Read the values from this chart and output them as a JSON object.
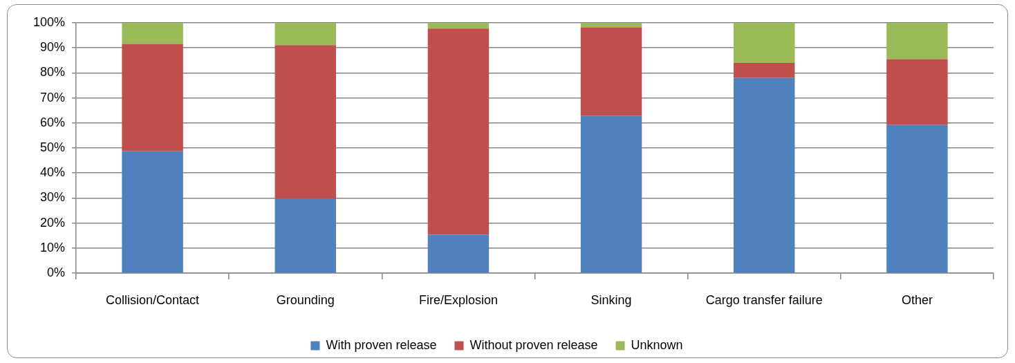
{
  "chart_data": {
    "type": "bar",
    "stacked": true,
    "categories": [
      "Collision/Contact",
      "Grounding",
      "Fire/Explosion",
      "Sinking",
      "Cargo transfer failure",
      "Other"
    ],
    "series": [
      {
        "name": "With proven release",
        "color": "#4f81bd",
        "values": [
          48.7,
          29.8,
          15.4,
          62.8,
          78.0,
          59.2
        ]
      },
      {
        "name": "Without proven release",
        "color": "#c0504d",
        "values": [
          42.9,
          61.3,
          82.3,
          35.4,
          6.0,
          26.3
        ]
      },
      {
        "name": "Unknown",
        "color": "#9bbb59",
        "values": [
          8.4,
          8.9,
          2.3,
          1.8,
          16.0,
          14.5
        ]
      }
    ],
    "ylim": [
      0,
      100
    ],
    "yticks": [
      {
        "value": 0,
        "label": "0%"
      },
      {
        "value": 10,
        "label": "10%"
      },
      {
        "value": 20,
        "label": "20%"
      },
      {
        "value": 30,
        "label": "30%"
      },
      {
        "value": 40,
        "label": "40%"
      },
      {
        "value": 50,
        "label": "50%"
      },
      {
        "value": 60,
        "label": "60%"
      },
      {
        "value": 70,
        "label": "70%"
      },
      {
        "value": 80,
        "label": "80%"
      },
      {
        "value": 90,
        "label": "90%"
      },
      {
        "value": 100,
        "label": "100%"
      }
    ],
    "grid": "y",
    "legend": "bottom"
  }
}
